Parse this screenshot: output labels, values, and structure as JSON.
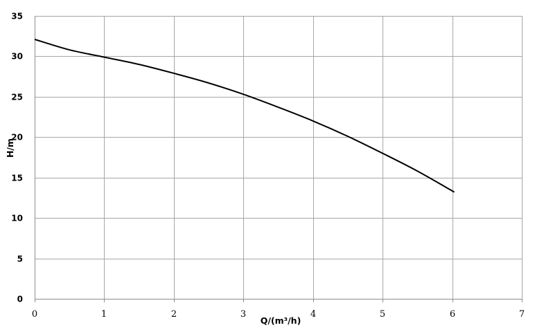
{
  "chart_data": {
    "type": "line",
    "title": "",
    "xlabel": "Q/(m³/h)",
    "ylabel": "H/m",
    "xlim": [
      0,
      7
    ],
    "ylim": [
      0,
      35
    ],
    "xticks": [
      0,
      1,
      2,
      3,
      4,
      5,
      6,
      7
    ],
    "yticks": [
      0,
      5,
      10,
      15,
      20,
      25,
      30,
      35
    ],
    "grid": true,
    "legend": "none",
    "series": [
      {
        "color": "#000000",
        "x": [
          0,
          0.5,
          1,
          1.5,
          2,
          2.5,
          3,
          3.5,
          4,
          4.5,
          5,
          5.5,
          6.03
        ],
        "y": [
          32.1,
          30.8,
          29.9,
          29.0,
          27.9,
          26.7,
          25.3,
          23.7,
          22.0,
          20.1,
          18.0,
          15.8,
          13.2
        ]
      }
    ]
  }
}
